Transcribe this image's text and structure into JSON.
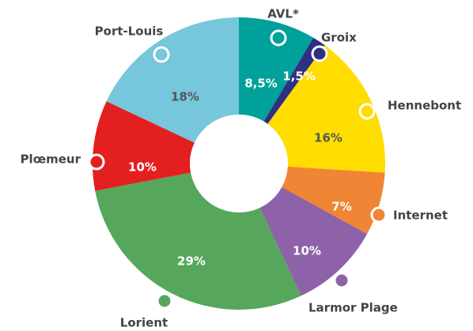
{
  "chart_data": {
    "type": "donut",
    "categories": [
      "AVL*",
      "Groix",
      "Hennebont",
      "Internet",
      "Larmor Plage",
      "Lorient",
      "Plœmeur",
      "Port-Louis"
    ],
    "values": [
      8.5,
      1.5,
      16,
      7,
      10,
      29,
      10,
      18
    ],
    "value_labels": [
      "8,5%",
      "1,5%",
      "16%",
      "7%",
      "10%",
      "29%",
      "10%",
      "18%"
    ],
    "colors": [
      "#00a19a",
      "#2e3181",
      "#ffdd00",
      "#f08535",
      "#8e62a8",
      "#56a75b",
      "#e3201f",
      "#76c6dc"
    ]
  }
}
